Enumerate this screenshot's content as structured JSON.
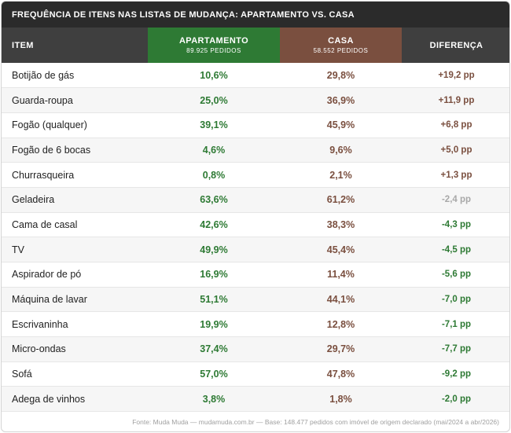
{
  "title": "FREQUÊNCIA DE ITENS NAS LISTAS DE MUDANÇA: APARTAMENTO VS. CASA",
  "footer": "Fonte: Muda Muda — mudamuda.com.br — Base: 148.477 pedidos com imóvel de origem declarado (mai/2024 a abr/2026)",
  "colors": {
    "apartamento": "#2e7a34",
    "casa": "#7a4f3f",
    "neutral": "#a8a8a8",
    "header": "#3f3f3f"
  },
  "chart_data": {
    "type": "table",
    "columns": [
      {
        "label": "ITEM"
      },
      {
        "label": "APARTAMENTO",
        "sub": "89.925 PEDIDOS"
      },
      {
        "label": "CASA",
        "sub": "58.552 PEDIDOS"
      },
      {
        "label": "DIFERENÇA"
      }
    ],
    "rows": [
      {
        "item": "Botijão de gás",
        "apartamento": "10,6%",
        "casa": "29,8%",
        "diferenca": "+19,2 pp",
        "tone": "pos"
      },
      {
        "item": "Guarda-roupa",
        "apartamento": "25,0%",
        "casa": "36,9%",
        "diferenca": "+11,9 pp",
        "tone": "pos"
      },
      {
        "item": "Fogão (qualquer)",
        "apartamento": "39,1%",
        "casa": "45,9%",
        "diferenca": "+6,8 pp",
        "tone": "pos"
      },
      {
        "item": "Fogão de 6 bocas",
        "apartamento": "4,6%",
        "casa": "9,6%",
        "diferenca": "+5,0 pp",
        "tone": "pos"
      },
      {
        "item": "Churrasqueira",
        "apartamento": "0,8%",
        "casa": "2,1%",
        "diferenca": "+1,3 pp",
        "tone": "pos"
      },
      {
        "item": "Geladeira",
        "apartamento": "63,6%",
        "casa": "61,2%",
        "diferenca": "-2,4 pp",
        "tone": "neutral"
      },
      {
        "item": "Cama de casal",
        "apartamento": "42,6%",
        "casa": "38,3%",
        "diferenca": "-4,3 pp",
        "tone": "neg"
      },
      {
        "item": "TV",
        "apartamento": "49,9%",
        "casa": "45,4%",
        "diferenca": "-4,5 pp",
        "tone": "neg"
      },
      {
        "item": "Aspirador de pó",
        "apartamento": "16,9%",
        "casa": "11,4%",
        "diferenca": "-5,6 pp",
        "tone": "neg"
      },
      {
        "item": "Máquina de lavar",
        "apartamento": "51,1%",
        "casa": "44,1%",
        "diferenca": "-7,0 pp",
        "tone": "neg"
      },
      {
        "item": "Escrivaninha",
        "apartamento": "19,9%",
        "casa": "12,8%",
        "diferenca": "-7,1 pp",
        "tone": "neg"
      },
      {
        "item": "Micro-ondas",
        "apartamento": "37,4%",
        "casa": "29,7%",
        "diferenca": "-7,7 pp",
        "tone": "neg"
      },
      {
        "item": "Sofá",
        "apartamento": "57,0%",
        "casa": "47,8%",
        "diferenca": "-9,2 pp",
        "tone": "neg"
      },
      {
        "item": "Adega de vinhos",
        "apartamento": "3,8%",
        "casa": "1,8%",
        "diferenca": "-2,0 pp",
        "tone": "neg"
      }
    ]
  }
}
